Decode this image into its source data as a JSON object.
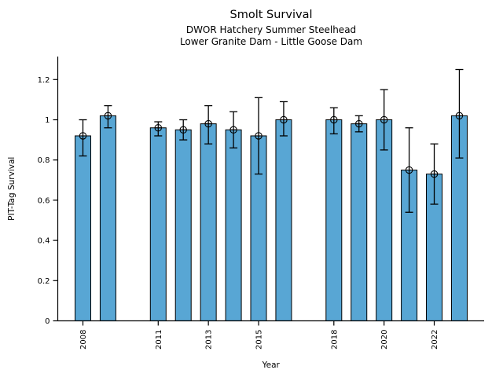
{
  "figure": {
    "title": "Smolt Survival",
    "subtitle_line1": "DWOR Hatchery Summer Steelhead",
    "subtitle_line2": "Lower Granite Dam - Little Goose Dam"
  },
  "chart_data": {
    "type": "bar",
    "title": "Smolt Survival",
    "subtitle": [
      "DWOR Hatchery Summer Steelhead",
      "Lower Granite Dam - Little Goose Dam"
    ],
    "xlabel": "Year",
    "ylabel": "PIT-Tag Survival",
    "bar_color": "#58A6D4",
    "bar_edge_color": "#000000",
    "error_color": "#000000",
    "background_color": "#ffffff",
    "grid": false,
    "legend": "none",
    "xlim": [
      2007,
      2024
    ],
    "ylim": [
      0,
      1.3
    ],
    "yticks": [
      0,
      0.2,
      0.4,
      0.6,
      0.8,
      1,
      1.2
    ],
    "ytick_labels": [
      "0",
      "0.2",
      "0.4",
      "0.6",
      "0.8",
      "1",
      "1.2"
    ],
    "xticks": [
      2008,
      2011,
      2013,
      2015,
      2018,
      2020,
      2022
    ],
    "xtick_labels": [
      "2008",
      "2011",
      "2013",
      "2015",
      "2018",
      "2020",
      "2022"
    ],
    "series": [
      {
        "name": "PIT-Tag Survival",
        "points": [
          {
            "year": 2008,
            "value": 0.92,
            "ci_low": 0.82,
            "ci_high": 1.0
          },
          {
            "year": 2009,
            "value": 1.02,
            "ci_low": 0.96,
            "ci_high": 1.07
          },
          {
            "year": 2011,
            "value": 0.96,
            "ci_low": 0.92,
            "ci_high": 0.99
          },
          {
            "year": 2012,
            "value": 0.95,
            "ci_low": 0.9,
            "ci_high": 1.0
          },
          {
            "year": 2013,
            "value": 0.98,
            "ci_low": 0.88,
            "ci_high": 1.07
          },
          {
            "year": 2014,
            "value": 0.95,
            "ci_low": 0.86,
            "ci_high": 1.04
          },
          {
            "year": 2015,
            "value": 0.92,
            "ci_low": 0.73,
            "ci_high": 1.11
          },
          {
            "year": 2016,
            "value": 1.0,
            "ci_low": 0.92,
            "ci_high": 1.09
          },
          {
            "year": 2018,
            "value": 1.0,
            "ci_low": 0.93,
            "ci_high": 1.06
          },
          {
            "year": 2019,
            "value": 0.98,
            "ci_low": 0.94,
            "ci_high": 1.02
          },
          {
            "year": 2020,
            "value": 1.0,
            "ci_low": 0.85,
            "ci_high": 1.15
          },
          {
            "year": 2021,
            "value": 0.75,
            "ci_low": 0.54,
            "ci_high": 0.96
          },
          {
            "year": 2022,
            "value": 0.73,
            "ci_low": 0.58,
            "ci_high": 0.88
          },
          {
            "year": 2023,
            "value": 1.02,
            "ci_low": 0.81,
            "ci_high": 1.25
          }
        ]
      }
    ]
  }
}
